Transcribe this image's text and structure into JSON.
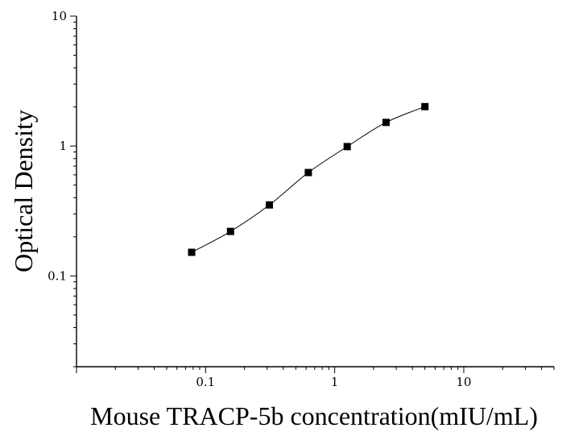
{
  "chart_data": {
    "type": "scatter",
    "title": "",
    "xlabel": "Mouse TRACP-5b concentration(mIU/mL)",
    "ylabel": "Optical Density",
    "x_scale": "log",
    "y_scale": "log",
    "xlim": [
      0.01,
      50
    ],
    "ylim": [
      0.02,
      10
    ],
    "x_ticks": [
      {
        "value": 0.1,
        "label": "0.1"
      },
      {
        "value": 1,
        "label": "1"
      },
      {
        "value": 10,
        "label": "10"
      }
    ],
    "y_ticks": [
      {
        "value": 0.1,
        "label": "0.1"
      },
      {
        "value": 1,
        "label": "1"
      },
      {
        "value": 10,
        "label": "10"
      }
    ],
    "grid": false,
    "legend": "none",
    "series": [
      {
        "marker": "square",
        "fitted_curve": true,
        "points": [
          {
            "x": 0.078,
            "y": 0.152
          },
          {
            "x": 0.156,
            "y": 0.22
          },
          {
            "x": 0.312,
            "y": 0.352
          },
          {
            "x": 0.625,
            "y": 0.625
          },
          {
            "x": 1.25,
            "y": 0.99
          },
          {
            "x": 2.5,
            "y": 1.52
          },
          {
            "x": 5,
            "y": 2.01
          }
        ]
      }
    ],
    "colors": {
      "axis": "#000000",
      "marker": "#000000",
      "curve": "#000000",
      "background": "#ffffff"
    }
  }
}
